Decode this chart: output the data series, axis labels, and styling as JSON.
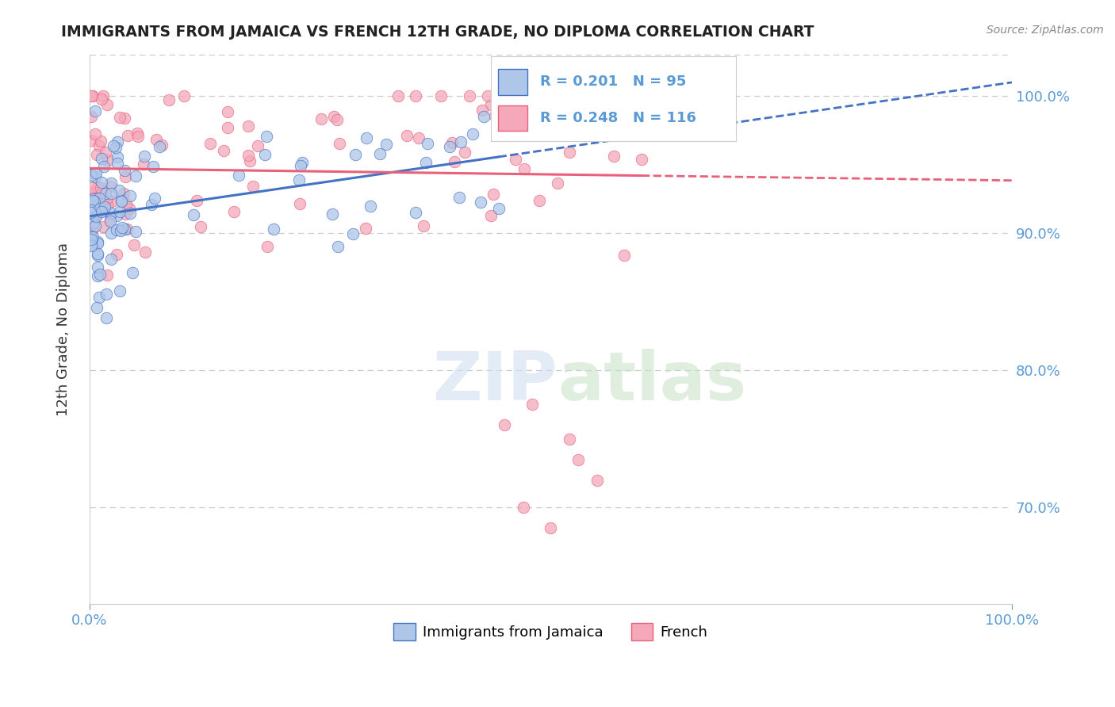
{
  "title": "IMMIGRANTS FROM JAMAICA VS FRENCH 12TH GRADE, NO DIPLOMA CORRELATION CHART",
  "source": "Source: ZipAtlas.com",
  "ylabel": "12th Grade, No Diploma",
  "legend_jamaica": "Immigrants from Jamaica",
  "legend_french": "French",
  "R_jamaica": 0.201,
  "N_jamaica": 95,
  "R_french": 0.248,
  "N_french": 116,
  "color_jamaica": "#aec6e8",
  "color_french": "#f4a8ba",
  "trendline_jamaica": "#4472c4",
  "trendline_french": "#e8607a",
  "background_color": "#ffffff",
  "xlim": [
    0,
    100
  ],
  "ylim": [
    63,
    103
  ],
  "yticks": [
    70,
    80,
    90,
    100
  ],
  "xticks": [
    0,
    100
  ],
  "tick_color": "#5b9bd5",
  "grid_color": "#cccccc",
  "title_color": "#222222",
  "source_color": "#888888",
  "ylabel_color": "#333333"
}
